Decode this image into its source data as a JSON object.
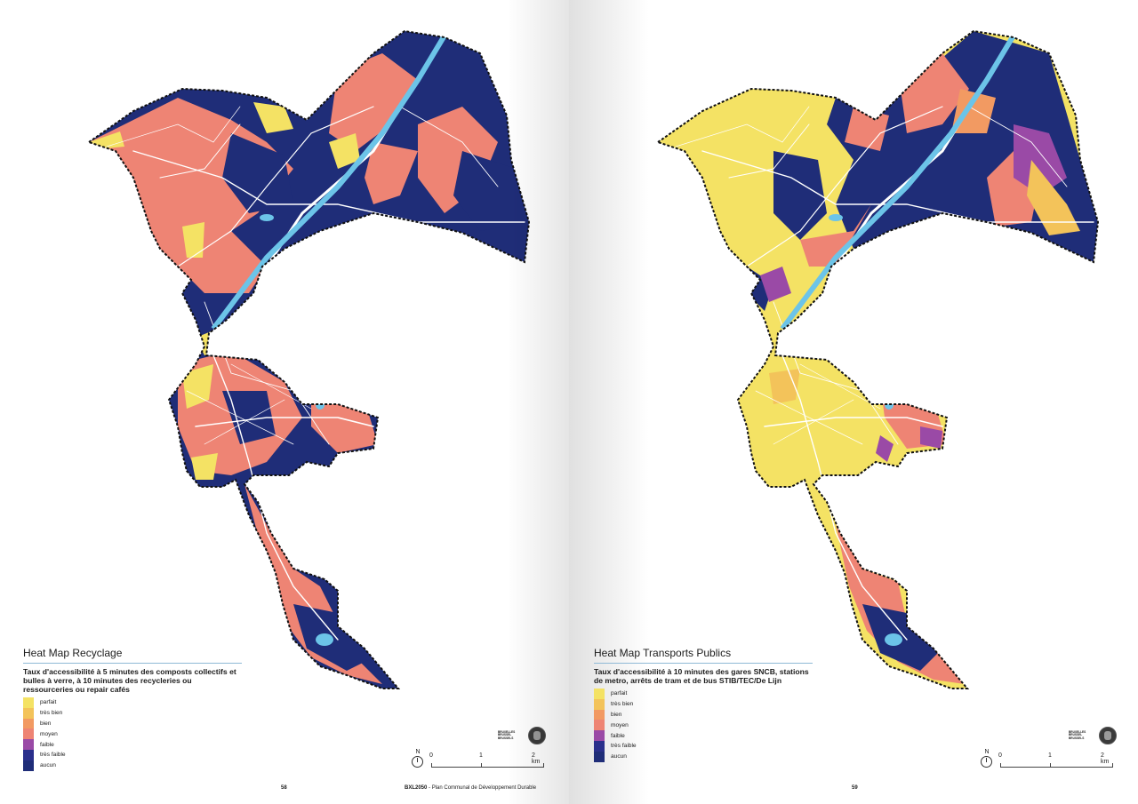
{
  "legend_levels": [
    "parfait",
    "très bien",
    "bien",
    "moyen",
    "faible",
    "très faible",
    "aucun"
  ],
  "legend_colors": [
    "#f4e264",
    "#f3c35a",
    "#f29a62",
    "#ee8474",
    "#9a4aa6",
    "#2a2f8c",
    "#1f2d78"
  ],
  "colors": {
    "dark_blue": "#1f2d78",
    "salmon": "#ee8474",
    "yellow": "#f4e264",
    "orange": "#f29a62",
    "purple": "#9a4aa6",
    "canal": "#6cc4e8",
    "roads": "#ffffff",
    "boundary": "#111111"
  },
  "left_page": {
    "title": "Heat Map Recyclage",
    "description": "Taux d'accessibilité à 5 minutes des composts collectifs et bulles à verre, à 10 minutes des recycleries ou ressourceries ou repair cafés",
    "legend": [
      "parfait",
      "très bien",
      "bien",
      "moyen",
      "faible",
      "très faible",
      "aucun"
    ],
    "page_number": "58",
    "publication_bold": "BXL2050",
    "publication_rest": " - Plan Communal de Développement Durable",
    "map_icon": "heat-map-recyclage"
  },
  "right_page": {
    "title": "Heat Map Transports Publics",
    "description": "Taux d'accessibilité à 10 minutes des gares SNCB, stations de metro, arrêts de tram et de bus STIB/TEC/De Lijn",
    "legend": [
      "parfait",
      "très bien",
      "bien",
      "moyen",
      "faible",
      "très faible",
      "aucun"
    ],
    "page_number": "59",
    "map_icon": "heat-map-transports-publics"
  },
  "scale": {
    "north": "N",
    "ticks": [
      "0",
      "1",
      "2 km"
    ]
  },
  "logo_text": "BRUXELLES BRUSSEL BRUSSELS",
  "icons": {
    "north_arrow": "north-arrow-icon",
    "seal": "city-seal-icon"
  }
}
